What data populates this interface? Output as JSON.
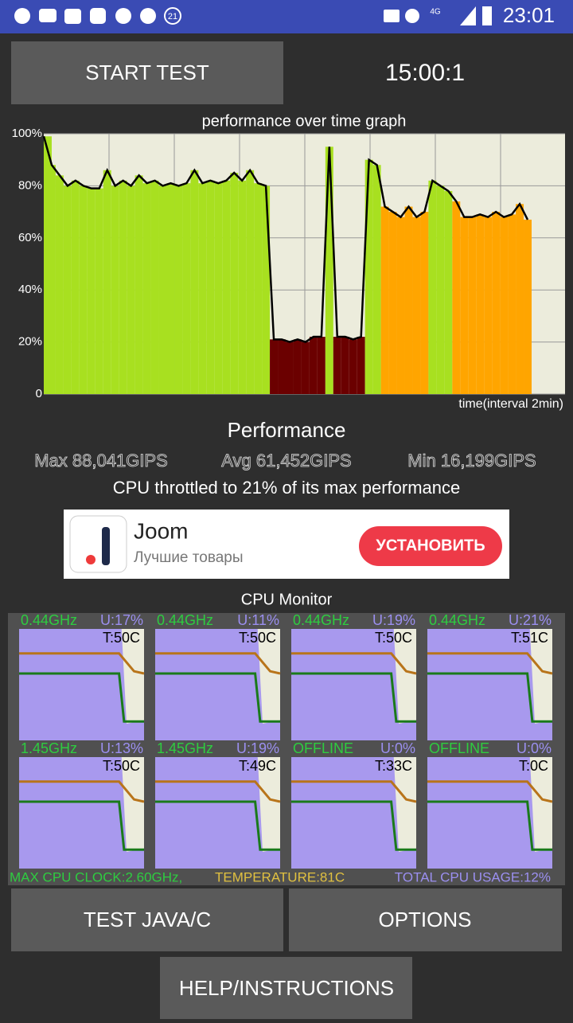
{
  "status_bar": {
    "badge": "21",
    "network": "4G",
    "time": "23:01"
  },
  "start_button": "START TEST",
  "timer": "15:00:1",
  "chart_data": {
    "type": "area",
    "title": "performance over time graph",
    "x_label": "time(interval 2min)",
    "values": [
      99,
      88,
      84,
      80,
      82,
      80,
      79,
      79,
      86,
      80,
      82,
      80,
      84,
      81,
      82,
      80,
      81,
      80,
      81,
      86,
      81,
      82,
      81,
      82,
      85,
      82,
      86,
      81,
      80,
      21,
      21,
      20,
      21,
      20,
      22,
      22,
      95,
      22,
      22,
      21,
      22,
      90,
      88,
      72,
      70,
      68,
      72,
      68,
      70,
      82,
      80,
      78,
      74,
      68,
      68,
      69,
      68,
      70,
      68,
      69,
      73,
      67
    ],
    "ylim": [
      0,
      100
    ],
    "yticks": [
      {
        "value": 0,
        "label": "0"
      },
      {
        "value": 20,
        "label": "20%"
      },
      {
        "value": 40,
        "label": "40%"
      },
      {
        "value": 60,
        "label": "60%"
      },
      {
        "value": 80,
        "label": "80%"
      },
      {
        "value": 100,
        "label": "100%"
      }
    ],
    "grid": true,
    "line_color": "#000000"
  },
  "performance": {
    "heading": "Performance",
    "max": "Max 88,041GIPS",
    "avg": "Avg 61,452GIPS",
    "min": "Min 16,199GIPS",
    "summary": "CPU throttled to 21% of its max performance"
  },
  "ad": {
    "title": "Joom",
    "subtitle": "Лучшие товары",
    "button": "УСТАНОВИТЬ"
  },
  "cpu_monitor": {
    "title": "CPU Monitor",
    "cores": [
      {
        "clock": "0.44GHz",
        "usage": "U:17%",
        "temp": "T:50C"
      },
      {
        "clock": "0.44GHz",
        "usage": "U:11%",
        "temp": "T:50C"
      },
      {
        "clock": "0.44GHz",
        "usage": "U:19%",
        "temp": "T:50C"
      },
      {
        "clock": "0.44GHz",
        "usage": "U:21%",
        "temp": "T:51C"
      },
      {
        "clock": "1.45GHz",
        "usage": "U:13%",
        "temp": "T:50C"
      },
      {
        "clock": "1.45GHz",
        "usage": "U:19%",
        "temp": "T:49C"
      },
      {
        "clock": "OFFLINE",
        "usage": "U:0%",
        "temp": "T:33C"
      },
      {
        "clock": "OFFLINE",
        "usage": "U:0%",
        "temp": "T:0C"
      }
    ],
    "max_clock": "MAX CPU CLOCK:2.60GHz,",
    "temperature": "TEMPERATURE:81C",
    "total_usage": "TOTAL CPU USAGE:12%"
  },
  "buttons": [
    "TEST JAVA/C",
    "OPTIONS",
    "HELP/INSTRUCTIONS"
  ]
}
